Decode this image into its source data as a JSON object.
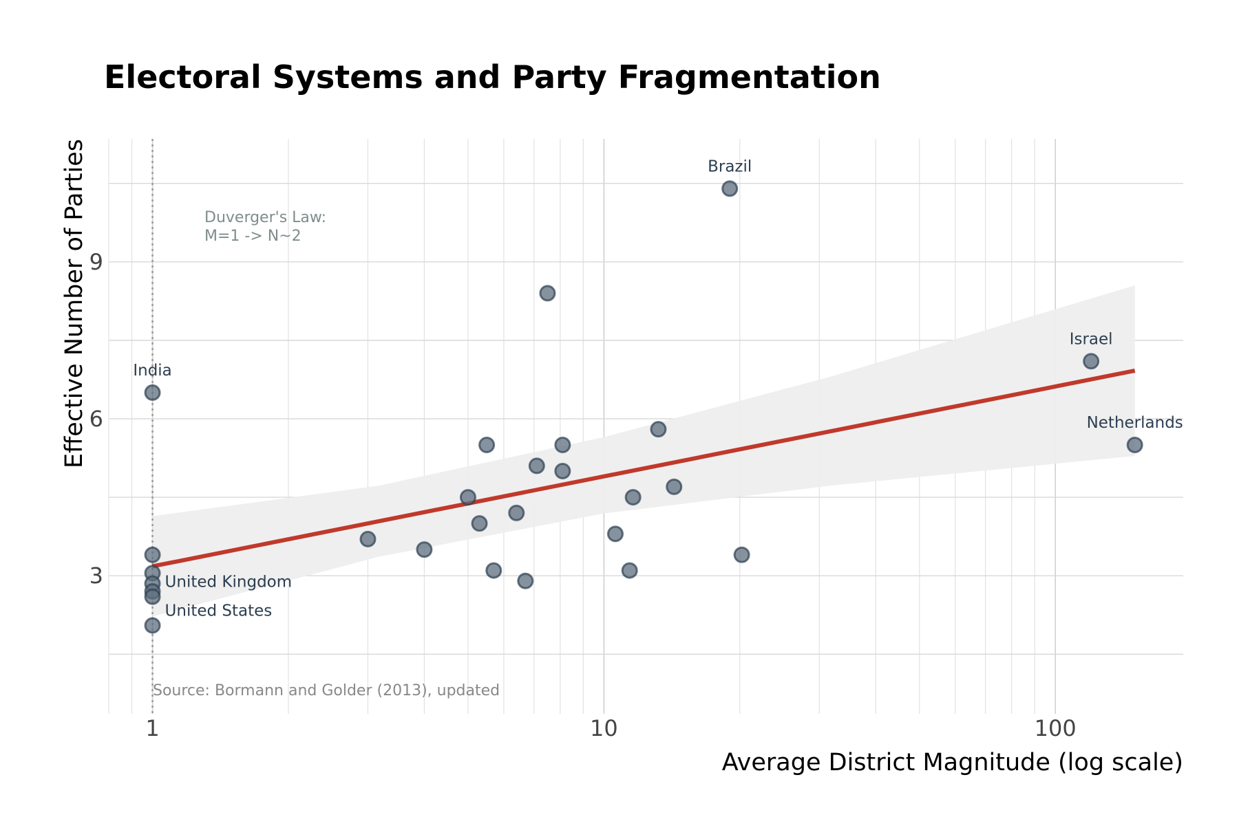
{
  "chart_data": {
    "type": "scatter",
    "title": "Electoral Systems and Party Fragmentation",
    "xlabel": "Average District Magnitude (log scale)",
    "ylabel": "Effective Number of Parties",
    "x_scale": "log",
    "xlim": [
      0.8,
      192
    ],
    "ylim": [
      0.36,
      11.35
    ],
    "x_ticks": [
      {
        "value": 1,
        "label": "1"
      },
      {
        "value": 10,
        "label": "10"
      },
      {
        "value": 100,
        "label": "100"
      }
    ],
    "y_ticks": [
      {
        "value": 3,
        "label": "3"
      },
      {
        "value": 6,
        "label": "6"
      },
      {
        "value": 9,
        "label": "9"
      }
    ],
    "grid": true,
    "colors": {
      "points": "#5d6d7e",
      "point_edge": "#2c3e50",
      "fit_line": "#c0392b",
      "ci_band": "#eeeeee",
      "labels": "#2c3e50",
      "annotation": "#7f8c8d"
    },
    "points": [
      {
        "x": 19,
        "y": 10.4,
        "label": "Brazil"
      },
      {
        "x": 7.5,
        "y": 8.4
      },
      {
        "x": 120,
        "y": 7.1,
        "label": "Israel"
      },
      {
        "x": 1,
        "y": 6.5,
        "label": "India"
      },
      {
        "x": 150,
        "y": 5.5,
        "label": "Netherlands"
      },
      {
        "x": 13.2,
        "y": 5.8
      },
      {
        "x": 5.5,
        "y": 5.5
      },
      {
        "x": 8.1,
        "y": 5.5
      },
      {
        "x": 7.1,
        "y": 5.1
      },
      {
        "x": 8.1,
        "y": 5.0
      },
      {
        "x": 14.3,
        "y": 4.7
      },
      {
        "x": 5.0,
        "y": 4.5
      },
      {
        "x": 11.6,
        "y": 4.5
      },
      {
        "x": 5.3,
        "y": 4.0
      },
      {
        "x": 6.4,
        "y": 4.2
      },
      {
        "x": 10.6,
        "y": 3.8
      },
      {
        "x": 3.0,
        "y": 3.7
      },
      {
        "x": 4.0,
        "y": 3.5
      },
      {
        "x": 20.2,
        "y": 3.4
      },
      {
        "x": 5.7,
        "y": 3.1
      },
      {
        "x": 11.4,
        "y": 3.1
      },
      {
        "x": 6.7,
        "y": 2.9
      },
      {
        "x": 1,
        "y": 3.4
      },
      {
        "x": 1,
        "y": 3.05
      },
      {
        "x": 1,
        "y": 2.85
      },
      {
        "x": 1,
        "y": 2.7
      },
      {
        "x": 1,
        "y": 2.6,
        "label": "United Kingdom"
      },
      {
        "x": 1,
        "y": 2.05,
        "label": "United States"
      }
    ],
    "fit_line": [
      {
        "x": 1,
        "y": 3.18
      },
      {
        "x": 150,
        "y": 6.92
      }
    ],
    "ci_band": [
      {
        "x": 1,
        "lower": 2.22,
        "upper": 4.14
      },
      {
        "x": 3.16,
        "lower": 3.36,
        "upper": 4.72
      },
      {
        "x": 10,
        "lower": 4.19,
        "upper": 5.65
      },
      {
        "x": 31.6,
        "lower": 4.72,
        "upper": 6.8
      },
      {
        "x": 150,
        "lower": 5.29,
        "upper": 8.55
      }
    ],
    "reference_line": {
      "x": 1,
      "style": "dotted"
    },
    "annotation": {
      "line1": "Duverger's Law:",
      "line2": "M=1 -> N~2",
      "x": 1.3,
      "y": 9.9
    },
    "source": "Source: Bormann and Golder (2013), updated"
  }
}
